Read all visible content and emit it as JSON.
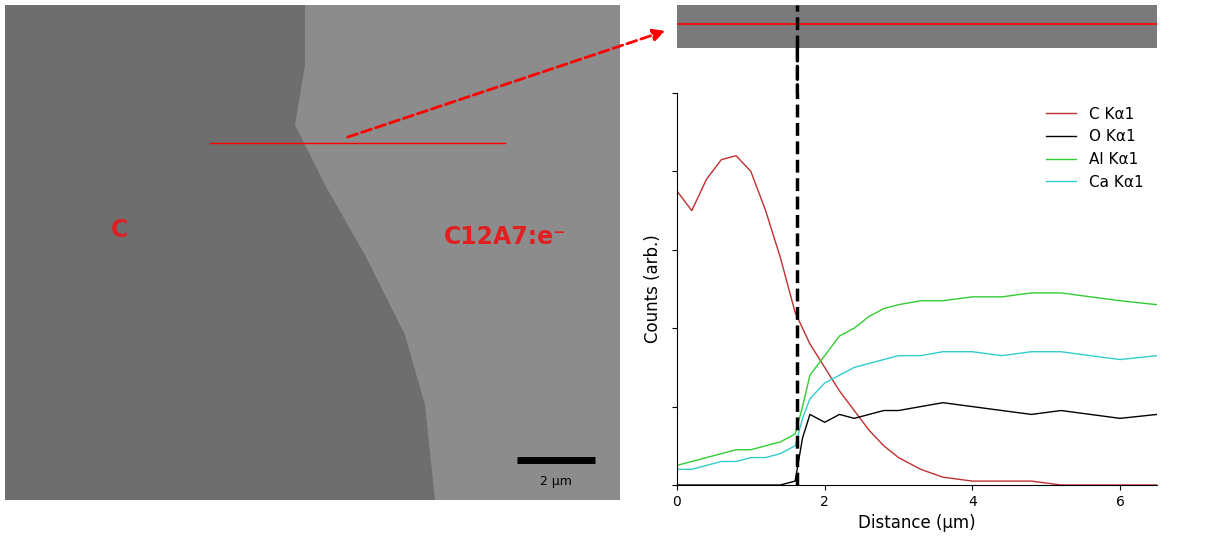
{
  "micrograph": {
    "labels": [
      "C",
      "C12A7:e⁻"
    ],
    "scale_bar": "2 μm"
  },
  "chart_data": {
    "type": "line",
    "xlabel": "Distance (μm)",
    "ylabel": "Counts (arb.)",
    "x": [
      0,
      0.2,
      0.4,
      0.6,
      0.8,
      1.0,
      1.2,
      1.4,
      1.6,
      1.7,
      1.8,
      2.0,
      2.2,
      2.4,
      2.6,
      2.8,
      3.0,
      3.3,
      3.6,
      4.0,
      4.4,
      4.8,
      5.2,
      5.6,
      6.0,
      6.5
    ],
    "series": [
      {
        "name": "C Kα1",
        "color": "#c03030",
        "values": [
          75,
          70,
          78,
          83,
          84,
          80,
          70,
          58,
          44,
          40,
          36,
          30,
          24,
          19,
          14,
          10,
          7,
          4,
          2,
          1,
          1,
          1,
          0,
          0,
          0,
          0
        ]
      },
      {
        "name": "O Kα1",
        "color": "#000000",
        "values": [
          0,
          0,
          0,
          0,
          0,
          0,
          0,
          0,
          1,
          12,
          18,
          16,
          18,
          17,
          18,
          19,
          19,
          20,
          21,
          20,
          19,
          18,
          19,
          18,
          17,
          18
        ]
      },
      {
        "name": "Al Kα1",
        "color": "#33cc33",
        "values": [
          5,
          6,
          7,
          8,
          9,
          9,
          10,
          11,
          13,
          20,
          28,
          33,
          38,
          40,
          43,
          45,
          46,
          47,
          47,
          48,
          48,
          49,
          49,
          48,
          47,
          46
        ]
      },
      {
        "name": "Ca Kα1",
        "color": "#33cccc",
        "values": [
          4,
          4,
          5,
          6,
          6,
          7,
          7,
          8,
          10,
          17,
          22,
          26,
          28,
          30,
          31,
          32,
          33,
          33,
          34,
          34,
          33,
          34,
          34,
          33,
          32,
          33
        ]
      }
    ],
    "boundary_x": 1.63,
    "xlim": [
      0,
      6.5
    ],
    "xticks": [
      0,
      2,
      4,
      6
    ],
    "ylim": [
      0,
      100
    ],
    "yticks": [
      0,
      20,
      40,
      60,
      80,
      100
    ],
    "tick_labels": "x",
    "legend": "upper right",
    "grid": false
  }
}
